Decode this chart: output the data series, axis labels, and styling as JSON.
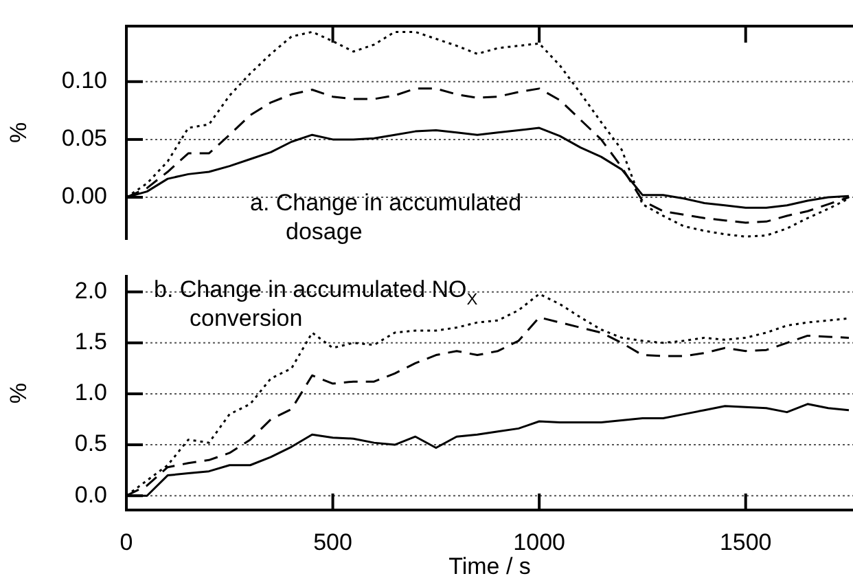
{
  "chart_data": [
    {
      "type": "line",
      "ylabel": "%",
      "annotations": [
        "a. Change in accumulated dosage"
      ],
      "x": [
        0,
        50,
        100,
        150,
        200,
        250,
        300,
        350,
        400,
        450,
        500,
        550,
        600,
        650,
        700,
        750,
        800,
        850,
        900,
        950,
        1000,
        1050,
        1100,
        1150,
        1200,
        1250,
        1300,
        1350,
        1400,
        1450,
        1500,
        1550,
        1600,
        1650,
        1700,
        1750
      ],
      "series": [
        {
          "color": "#000000",
          "line_style": "solid",
          "values": [
            0,
            0.005,
            0.016,
            0.02,
            0.022,
            0.027,
            0.033,
            0.039,
            0.048,
            0.054,
            0.05,
            0.05,
            0.051,
            0.054,
            0.057,
            0.058,
            0.056,
            0.054,
            0.056,
            0.058,
            0.06,
            0.053,
            0.043,
            0.035,
            0.024,
            0.002,
            0.002,
            -0.001,
            -0.005,
            -0.007,
            -0.009,
            -0.009,
            -0.007,
            -0.003,
            0,
            0.001
          ]
        },
        {
          "color": "#000000",
          "line_style": "dashed",
          "values": [
            0,
            0.008,
            0.022,
            0.038,
            0.038,
            0.054,
            0.071,
            0.082,
            0.089,
            0.093,
            0.087,
            0.085,
            0.085,
            0.088,
            0.094,
            0.094,
            0.089,
            0.086,
            0.087,
            0.091,
            0.094,
            0.084,
            0.067,
            0.05,
            0.026,
            -0.003,
            -0.012,
            -0.015,
            -0.018,
            -0.02,
            -0.022,
            -0.021,
            -0.016,
            -0.012,
            -0.006,
            0
          ]
        },
        {
          "color": "#000000",
          "line_style": "dotted",
          "values": [
            0,
            0.012,
            0.031,
            0.06,
            0.063,
            0.088,
            0.107,
            0.124,
            0.139,
            0.143,
            0.135,
            0.126,
            0.132,
            0.143,
            0.143,
            0.137,
            0.131,
            0.124,
            0.129,
            0.131,
            0.133,
            0.114,
            0.09,
            0.065,
            0.041,
            -0.006,
            -0.016,
            -0.025,
            -0.029,
            -0.032,
            -0.034,
            -0.033,
            -0.027,
            -0.018,
            -0.01,
            -0.001
          ]
        }
      ],
      "xlim": [
        0,
        1760
      ],
      "xticks": [
        0,
        500,
        1000,
        1500
      ],
      "ylim": [
        -0.036,
        0.148
      ],
      "yticks": [
        {
          "value": 0,
          "label": "0.00"
        },
        {
          "value": 0.05,
          "label": "0.05"
        },
        {
          "value": 0.1,
          "label": "0.10"
        }
      ],
      "grid": "y",
      "tick_labels": "y"
    },
    {
      "type": "line",
      "xlabel": "Time / s",
      "ylabel": "%",
      "annotations": [
        "b. Change in accumulated NO$_{X}$ conversion"
      ],
      "x": [
        0,
        50,
        100,
        150,
        200,
        250,
        300,
        350,
        400,
        450,
        500,
        550,
        600,
        650,
        700,
        750,
        800,
        850,
        900,
        950,
        1000,
        1050,
        1100,
        1150,
        1200,
        1250,
        1300,
        1350,
        1400,
        1450,
        1500,
        1550,
        1600,
        1650,
        1700,
        1750
      ],
      "series": [
        {
          "color": "#000000",
          "line_style": "solid",
          "values": [
            0,
            0,
            0.2,
            0.22,
            0.24,
            0.3,
            0.3,
            0.38,
            0.48,
            0.6,
            0.57,
            0.56,
            0.52,
            0.5,
            0.58,
            0.47,
            0.58,
            0.6,
            0.63,
            0.66,
            0.73,
            0.72,
            0.72,
            0.72,
            0.74,
            0.76,
            0.76,
            0.8,
            0.84,
            0.88,
            0.87,
            0.86,
            0.82,
            0.9,
            0.86,
            0.84
          ]
        },
        {
          "color": "#000000",
          "line_style": "dashed",
          "values": [
            0,
            0.1,
            0.28,
            0.32,
            0.35,
            0.42,
            0.55,
            0.75,
            0.85,
            1.18,
            1.1,
            1.12,
            1.12,
            1.2,
            1.3,
            1.38,
            1.42,
            1.38,
            1.42,
            1.52,
            1.75,
            1.7,
            1.65,
            1.6,
            1.5,
            1.38,
            1.37,
            1.37,
            1.4,
            1.45,
            1.42,
            1.43,
            1.5,
            1.57,
            1.56,
            1.55
          ]
        },
        {
          "color": "#000000",
          "line_style": "dotted",
          "values": [
            0,
            0.15,
            0.3,
            0.55,
            0.52,
            0.8,
            0.9,
            1.15,
            1.25,
            1.6,
            1.45,
            1.5,
            1.48,
            1.6,
            1.62,
            1.62,
            1.65,
            1.7,
            1.72,
            1.82,
            1.98,
            1.88,
            1.75,
            1.63,
            1.55,
            1.52,
            1.5,
            1.52,
            1.55,
            1.53,
            1.55,
            1.6,
            1.67,
            1.7,
            1.72,
            1.74
          ]
        }
      ],
      "xlim": [
        0,
        1760
      ],
      "xticks": [
        0,
        500,
        1000,
        1500
      ],
      "ylim": [
        -0.14,
        2.15
      ],
      "yticks": [
        {
          "value": 0,
          "label": "0.0"
        },
        {
          "value": 0.5,
          "label": "0.5"
        },
        {
          "value": 1,
          "label": "1.0"
        },
        {
          "value": 1.5,
          "label": "1.5"
        },
        {
          "value": 2,
          "label": "2.0"
        }
      ],
      "grid": "y"
    }
  ]
}
